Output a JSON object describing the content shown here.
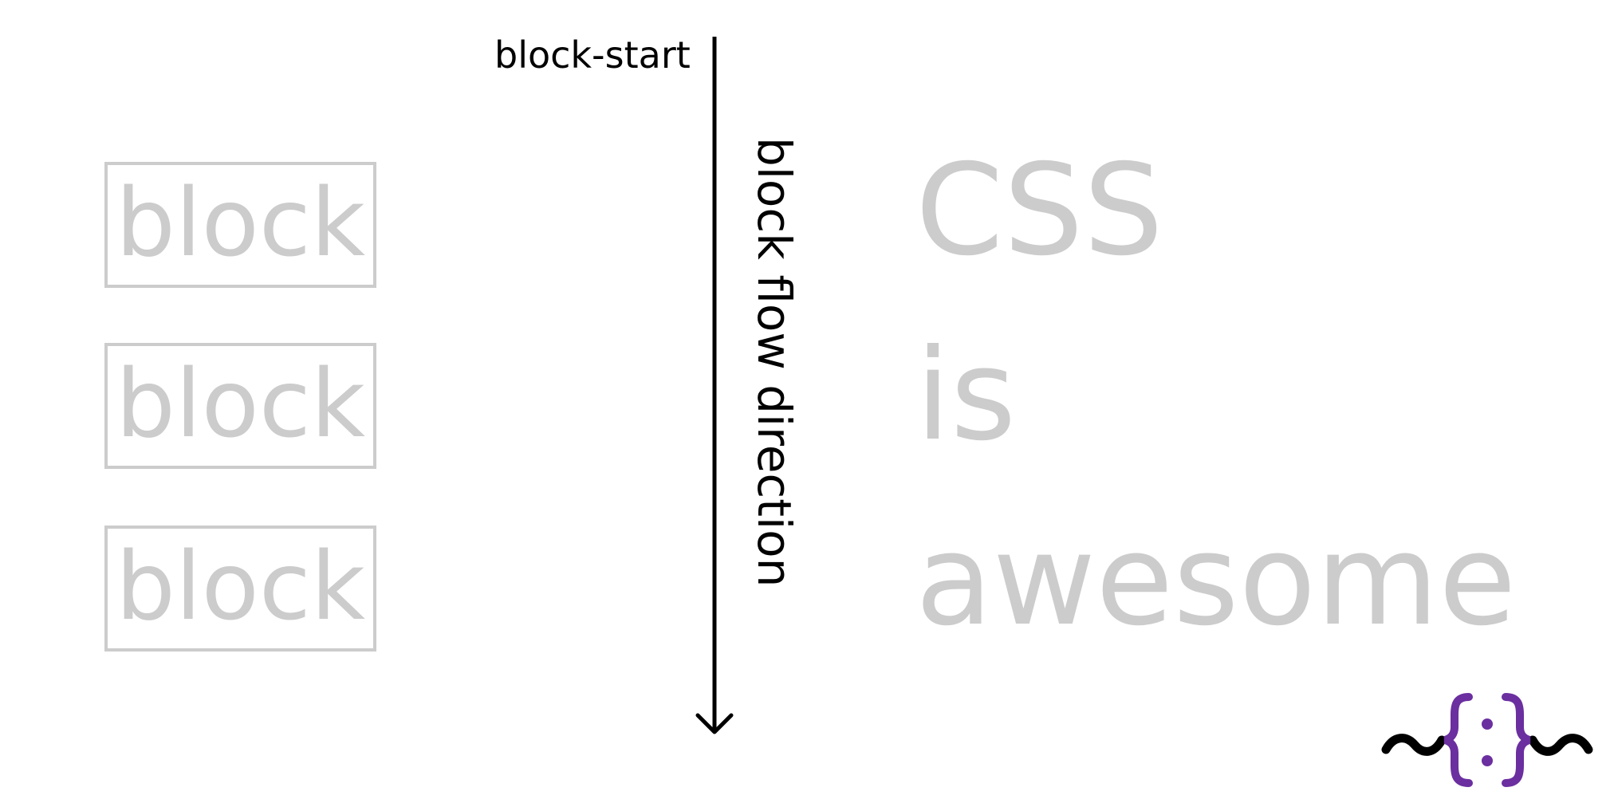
{
  "diagram": {
    "blocks": [
      "block",
      "block",
      "block"
    ],
    "block_start_label": "block-start",
    "flow_direction_label": "block flow direction",
    "words": [
      "CSS",
      "is",
      "awesome"
    ]
  },
  "colors": {
    "muted": "#cccccc",
    "ink": "#000000",
    "logo_purple": "#6b2fa0"
  },
  "logo": {
    "icon": "css-tricks-logo-icon"
  }
}
